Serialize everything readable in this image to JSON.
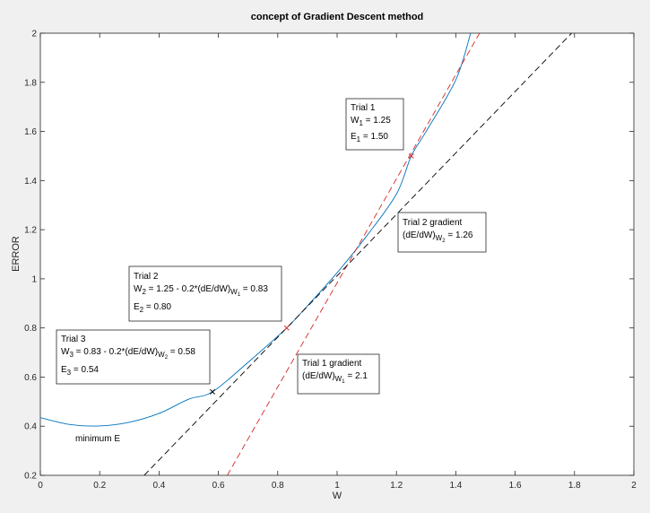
{
  "chart_data": {
    "type": "line",
    "title": "concept of Gradient Descent method",
    "xlabel": "W",
    "ylabel": "ERROR",
    "xlim": [
      0,
      2
    ],
    "ylim": [
      0.2,
      2
    ],
    "x_ticks": [
      "0",
      "0.2",
      "0.4",
      "0.6",
      "0.8",
      "1",
      "1.2",
      "1.4",
      "1.6",
      "1.8",
      "2"
    ],
    "y_ticks": [
      "0.2",
      "0.4",
      "0.6",
      "0.8",
      "1",
      "1.2",
      "1.4",
      "1.6",
      "1.8",
      "2"
    ],
    "grid": false,
    "colors": {
      "curve": "#0072bd",
      "trial1_tangent": "#d62728",
      "trial2_tangent": "#000000",
      "marker_trial1": "#d62728",
      "marker_trial2": "#d62728",
      "marker_trial3": "#000000"
    },
    "series": [
      {
        "line_style": "solid",
        "x": [
          0,
          0.1,
          0.2,
          0.3,
          0.4,
          0.5,
          0.58,
          0.7,
          0.83,
          0.9,
          1.0,
          1.1,
          1.2,
          1.25,
          1.3,
          1.4,
          1.45
        ],
        "y": [
          0.435,
          0.407,
          0.401,
          0.416,
          0.452,
          0.51,
          0.54,
          0.66,
          0.8,
          0.89,
          1.025,
          1.175,
          1.345,
          1.5,
          1.6,
          1.81,
          2.0
        ]
      },
      {
        "line_style": "dashed",
        "x": [
          0.63,
          1.48
        ],
        "y": [
          0.2,
          2.0
        ]
      },
      {
        "line_style": "dashed",
        "x": [
          0.35,
          1.79
        ],
        "y": [
          0.2,
          2.0
        ]
      }
    ],
    "markers": [
      {
        "x": 1.25,
        "y": 1.5
      },
      {
        "x": 0.83,
        "y": 0.8
      },
      {
        "x": 0.58,
        "y": 0.54
      }
    ],
    "annotations": [
      {
        "lines": [
          [
            "Trial 1"
          ],
          [
            "W",
            "1",
            " = 1.25"
          ],
          [
            "E",
            "1",
            " = 1.50"
          ]
        ]
      },
      {
        "lines": [
          [
            "Trial 2 gradient"
          ],
          [
            "(dE/dW)",
            "W",
            "2",
            " = 1.26"
          ]
        ]
      },
      {
        "lines": [
          [
            "Trial 2"
          ],
          [
            "W",
            "2",
            " = 1.25 - 0.2*(dE/dW)",
            "W",
            "1",
            " = 0.83"
          ],
          [
            "E",
            "2",
            " = 0.80"
          ]
        ]
      },
      {
        "lines": [
          [
            "Trial 3"
          ],
          [
            "W",
            "3",
            " = 0.83 - 0.2*(dE/dW)",
            "W",
            "2",
            " = 0.58"
          ],
          [
            "E",
            "3",
            " = 0.54"
          ]
        ]
      },
      {
        "lines": [
          [
            "Trial 1 gradient"
          ],
          [
            "(dE/dW)",
            "W",
            "1",
            " = 2.1"
          ]
        ]
      }
    ],
    "text_labels": [
      "minimum E"
    ]
  }
}
